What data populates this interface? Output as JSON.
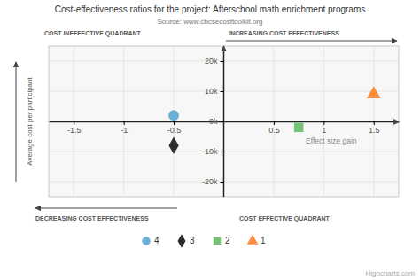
{
  "chart_data": {
    "type": "scatter",
    "title": "Cost-effectiveness ratios for the project: Afterschool math enrichment programs",
    "subtitle": "Source: www.cbcsecosttoolkit.org",
    "y_label": "Average cost per participant",
    "series": [
      {
        "name": "4",
        "color": "#6baed6",
        "marker": "circle",
        "x": [
          -0.5
        ],
        "values": [
          2000
        ]
      },
      {
        "name": "3",
        "color": "#2d2d2d",
        "marker": "diamond",
        "x": [
          -0.5
        ],
        "values": [
          -8000
        ]
      },
      {
        "name": "2",
        "color": "#74c476",
        "marker": "square",
        "x": [
          0.75
        ],
        "values": [
          -2000
        ]
      },
      {
        "name": "1",
        "color": "#fd8d3c",
        "marker": "triangle",
        "x": [
          1.5
        ],
        "values": [
          9000
        ]
      }
    ],
    "xlim": [
      -1.75,
      1.75
    ],
    "xticks": [
      -1.5,
      -1,
      -0.5,
      0.5,
      1,
      1.5
    ],
    "ylim": [
      -25000,
      25000
    ],
    "yticks": [
      {
        "value": -20000,
        "label": "-20k"
      },
      {
        "value": -10000,
        "label": "-10k"
      },
      {
        "value": 0,
        "label": "0k"
      },
      {
        "value": 10000,
        "label": "10k"
      },
      {
        "value": 20000,
        "label": "20k"
      }
    ],
    "grid": true,
    "legend": "bottom",
    "annotations": [
      {
        "text": "Effect size gain",
        "x": 0.82,
        "y": -5500
      },
      {
        "text": "COST INEFFECTIVE QUADRANT",
        "position": "top-left"
      },
      {
        "text": "INCREASING COST EFFECTIVENESS",
        "position": "top-right"
      },
      {
        "text": "DECREASING COST EFFECTIVENESS",
        "position": "bottom-left"
      },
      {
        "text": "COST EFFECTIVE QUADRANT",
        "position": "bottom-right"
      },
      {
        "text": "Highcharts.com",
        "position": "footer"
      }
    ]
  }
}
